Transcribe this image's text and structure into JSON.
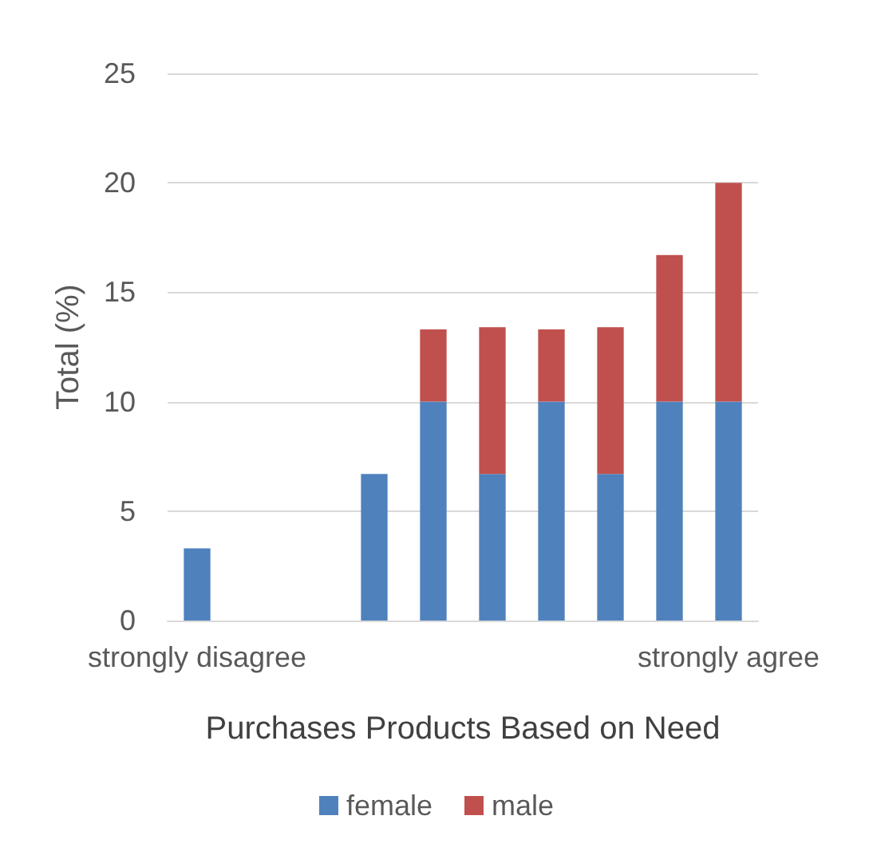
{
  "chart_data": {
    "type": "bar",
    "stacked": true,
    "xlabel": "Purchases Products Based on Need",
    "ylabel": "Total (%)",
    "categories": [
      "strongly disagree",
      null,
      null,
      null,
      null,
      null,
      null,
      null,
      null,
      "strongly agree"
    ],
    "series": [
      {
        "name": "female",
        "color": "#4f81bd",
        "values": [
          3.3,
          0,
          0,
          6.7,
          10,
          6.7,
          10,
          6.7,
          10,
          10
        ]
      },
      {
        "name": "male",
        "color": "#c0504d",
        "values": [
          0,
          0,
          0,
          0,
          3.3,
          6.7,
          3.3,
          6.7,
          6.7,
          10
        ]
      }
    ],
    "ylim": [
      0,
      25
    ],
    "yticks": [
      0,
      5,
      10,
      15,
      20,
      25
    ],
    "grid": "y",
    "legend": "bottom"
  }
}
